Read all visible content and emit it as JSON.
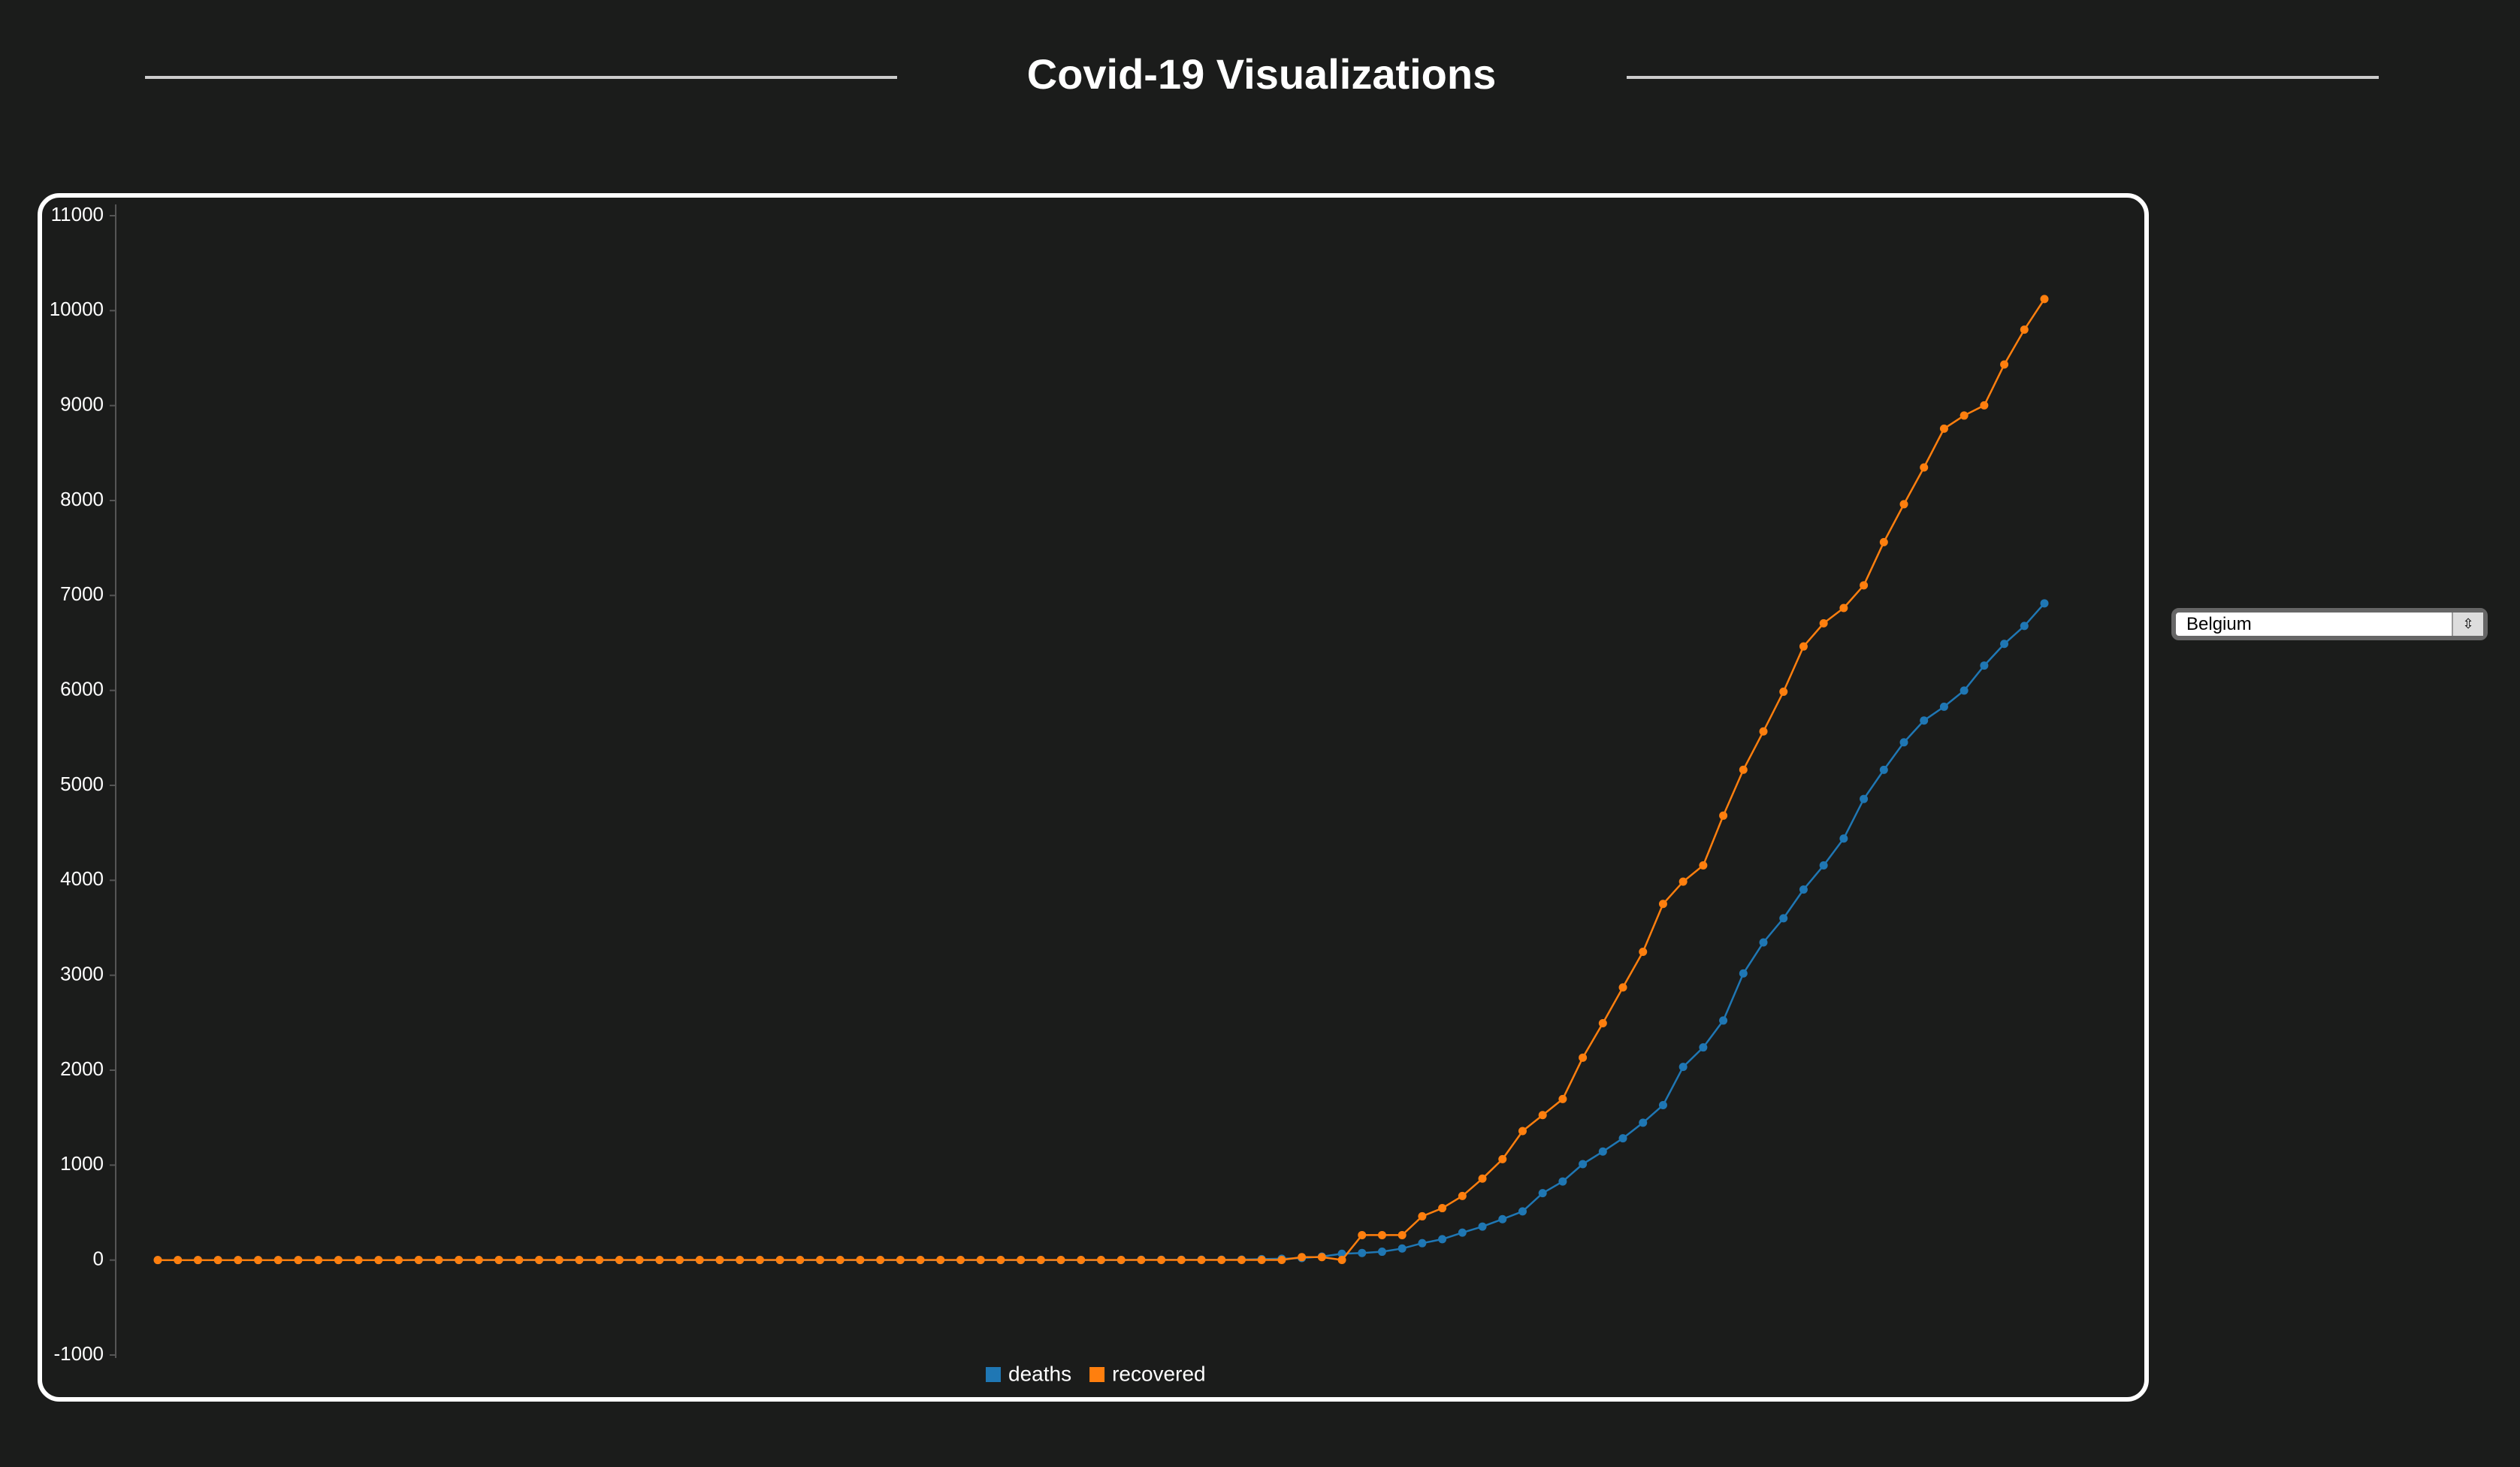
{
  "header": {
    "title": "Covid-19 Visualizations"
  },
  "dropdown": {
    "selected": "Belgium"
  },
  "chart_data": {
    "type": "line",
    "ylim": [
      -1000,
      11000
    ],
    "yticks": [
      -1000,
      0,
      1000,
      2000,
      3000,
      4000,
      5000,
      6000,
      7000,
      8000,
      9000,
      10000,
      11000
    ],
    "grid": false,
    "series": [
      {
        "name": "deaths",
        "color": "#1f77b4",
        "values": [
          0,
          0,
          0,
          0,
          0,
          0,
          0,
          0,
          0,
          0,
          0,
          0,
          0,
          0,
          0,
          0,
          0,
          0,
          0,
          0,
          0,
          0,
          0,
          0,
          0,
          0,
          0,
          0,
          0,
          0,
          0,
          0,
          0,
          0,
          0,
          0,
          0,
          0,
          0,
          0,
          0,
          0,
          0,
          0,
          0,
          0,
          0,
          0,
          0,
          3,
          3,
          3,
          4,
          4,
          5,
          10,
          14,
          21,
          37,
          67,
          75,
          88,
          122,
          178,
          220,
          289,
          353,
          431,
          513,
          705,
          828,
          1011,
          1143,
          1283,
          1447,
          1632,
          2035,
          2240,
          2523,
          3019,
          3346,
          3600,
          3903,
          4157,
          4440,
          4857,
          5163,
          5453,
          5683,
          5828,
          5998,
          6262,
          6490,
          6679,
          6917
        ]
      },
      {
        "name": "recovered",
        "color": "#ff7f0e",
        "values": [
          0,
          0,
          0,
          0,
          0,
          0,
          0,
          0,
          0,
          0,
          0,
          0,
          0,
          1,
          1,
          1,
          1,
          1,
          1,
          1,
          1,
          1,
          1,
          1,
          1,
          1,
          1,
          1,
          1,
          1,
          1,
          1,
          1,
          1,
          1,
          1,
          1,
          1,
          1,
          1,
          1,
          1,
          1,
          1,
          1,
          1,
          1,
          1,
          1,
          1,
          1,
          1,
          1,
          1,
          1,
          1,
          1,
          31,
          31,
          1,
          263,
          263,
          263,
          461,
          547,
          675,
          858,
          1063,
          1359,
          1527,
          1696,
          2132,
          2495,
          2872,
          3247,
          3751,
          3986,
          4157,
          4681,
          5164,
          5568,
          5986,
          6463,
          6707,
          6868,
          7107,
          7562,
          7961,
          8348,
          8757,
          8895,
          9002,
          9433,
          9800,
          10122
        ]
      }
    ]
  }
}
